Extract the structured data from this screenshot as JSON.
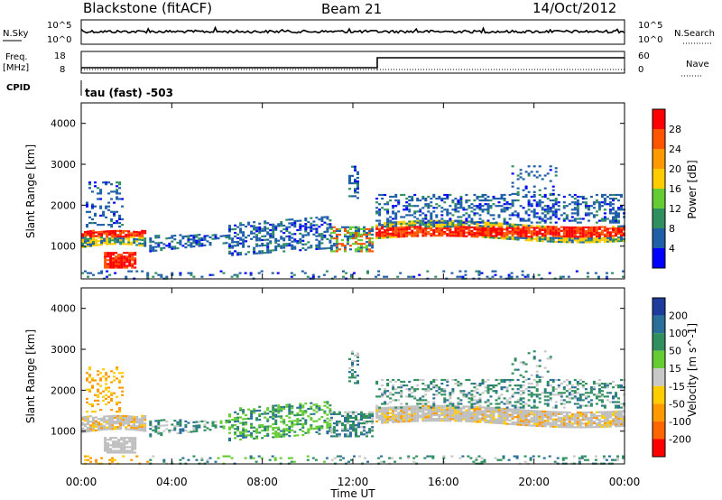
{
  "header": {
    "station": "Blackstone (fitACF)",
    "beam": "Beam 21",
    "date": "14/Oct/2012"
  },
  "noise_panel": {
    "left_label": "N.Sky",
    "right_label": "N.Search",
    "left_ticks": [
      "10^5",
      "10^0"
    ],
    "right_ticks": [
      "10^5",
      "10^0"
    ]
  },
  "freq_panel": {
    "left_label_line1": "Freq.",
    "left_label_line2": "[MHz]",
    "right_label": "Nave",
    "left_ticks": [
      "18",
      "8"
    ],
    "right_ticks": [
      "60",
      "0"
    ],
    "freq_step_time": "13:00"
  },
  "cpid": {
    "label": "CPID",
    "value": "tau (fast) -503"
  },
  "colors": {
    "power": [
      "#0000ff",
      "#1f5fa8",
      "#2f8f5f",
      "#66cc33",
      "#ffcc00",
      "#ff9900",
      "#ff5500",
      "#ff0000"
    ],
    "velocity": [
      "#1e3c9b",
      "#2a6e9a",
      "#2f8f5f",
      "#66cc33",
      "#c8c8c8",
      "#ffcc00",
      "#ff9900",
      "#ff6600",
      "#ff0000"
    ],
    "ground_scatter": "#bebebe"
  },
  "chart_data": [
    {
      "type": "heatmap",
      "name": "power",
      "ylabel": "Slant Range [km]",
      "yticks": [
        "1000",
        "2000",
        "3000",
        "4000"
      ],
      "ylim": [
        200,
        4500
      ],
      "xlim": [
        "00:00",
        "24:00"
      ],
      "colorbar": {
        "label": "Power [dB]",
        "ticks": [
          "4",
          "8",
          "12",
          "16",
          "20",
          "24",
          "28"
        ],
        "range": [
          0,
          32
        ]
      }
    },
    {
      "type": "heatmap",
      "name": "velocity",
      "ylabel": "Slant Range [km]",
      "yticks": [
        "1000",
        "2000",
        "3000",
        "4000"
      ],
      "ylim": [
        200,
        4500
      ],
      "xlim": [
        "00:00",
        "24:00"
      ],
      "xlabel": "Time UT",
      "xticks": [
        "00:00",
        "04:00",
        "08:00",
        "12:00",
        "16:00",
        "20:00",
        "00:00"
      ],
      "colorbar": {
        "label": "Velocity [m s^-1]",
        "ticks": [
          "200",
          "100",
          "50",
          "15",
          "-15",
          "-50",
          "-100",
          "-200"
        ]
      }
    }
  ]
}
